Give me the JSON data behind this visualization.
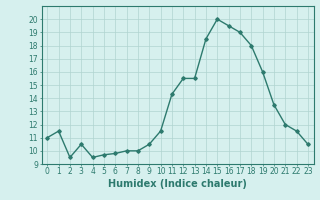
{
  "x": [
    0,
    1,
    2,
    3,
    4,
    5,
    6,
    7,
    8,
    9,
    10,
    11,
    12,
    13,
    14,
    15,
    16,
    17,
    18,
    19,
    20,
    21,
    22,
    23
  ],
  "y": [
    11.0,
    11.5,
    9.5,
    10.5,
    9.5,
    9.7,
    9.8,
    10.0,
    10.0,
    10.5,
    11.5,
    14.3,
    15.5,
    15.5,
    18.5,
    20.0,
    19.5,
    19.0,
    18.0,
    16.0,
    13.5,
    12.0,
    11.5,
    10.5
  ],
  "xlabel": "Humidex (Indice chaleur)",
  "ylim": [
    9,
    21
  ],
  "yticks": [
    9,
    10,
    11,
    12,
    13,
    14,
    15,
    16,
    17,
    18,
    19,
    20
  ],
  "xticks": [
    0,
    1,
    2,
    3,
    4,
    5,
    6,
    7,
    8,
    9,
    10,
    11,
    12,
    13,
    14,
    15,
    16,
    17,
    18,
    19,
    20,
    21,
    22,
    23
  ],
  "line_color": "#2d7a6e",
  "marker": "D",
  "marker_size": 1.8,
  "bg_color": "#d6f0ee",
  "grid_color": "#b0d4d0",
  "spine_color": "#2d7a6e",
  "tick_label_color": "#2d7a6e",
  "xlabel_color": "#2d7a6e",
  "xlabel_fontsize": 7,
  "tick_fontsize": 5.5,
  "line_width": 1.0
}
